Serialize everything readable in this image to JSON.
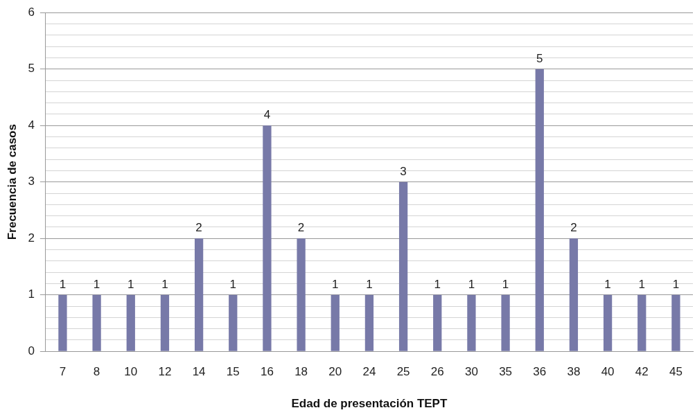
{
  "chart_data": {
    "type": "bar",
    "xlabel": "Edad de presentación TEPT",
    "ylabel": "Frecuencia de casos",
    "categories": [
      "7",
      "8",
      "10",
      "12",
      "14",
      "15",
      "16",
      "18",
      "20",
      "24",
      "25",
      "26",
      "30",
      "35",
      "36",
      "38",
      "40",
      "42",
      "45"
    ],
    "values": [
      1,
      1,
      1,
      1,
      2,
      1,
      4,
      2,
      1,
      1,
      3,
      1,
      1,
      1,
      5,
      2,
      1,
      1,
      1
    ],
    "color": "#7779a8",
    "ylim": [
      0,
      6
    ],
    "yticks": [
      0,
      {
        "value": 0.2,
        "label": null
      },
      {
        "value": 0.4,
        "label": null
      },
      {
        "value": 0.6,
        "label": null
      },
      {
        "value": 0.8,
        "label": null
      },
      1,
      {
        "value": 1.2,
        "label": null
      },
      {
        "value": 1.4,
        "label": null
      },
      {
        "value": 1.6,
        "label": null
      },
      {
        "value": 1.8,
        "label": null
      },
      2,
      {
        "value": 2.2,
        "label": null
      },
      {
        "value": 2.4,
        "label": null
      },
      {
        "value": 2.6,
        "label": null
      },
      {
        "value": 2.8,
        "label": null
      },
      3,
      {
        "value": 3.2,
        "label": null
      },
      {
        "value": 3.4,
        "label": null
      },
      {
        "value": 3.6,
        "label": null
      },
      {
        "value": 3.8,
        "label": null
      },
      4,
      {
        "value": 4.2,
        "label": null
      },
      {
        "value": 4.4,
        "label": null
      },
      {
        "value": 4.6,
        "label": null
      },
      {
        "value": 4.8,
        "label": null
      },
      5,
      {
        "value": 5.2,
        "label": null
      },
      {
        "value": 5.4,
        "label": null
      },
      {
        "value": 5.6,
        "label": null
      },
      {
        "value": 5.8,
        "label": null
      },
      6
    ],
    "grid": "y",
    "data_labels": true,
    "legend": false
  }
}
